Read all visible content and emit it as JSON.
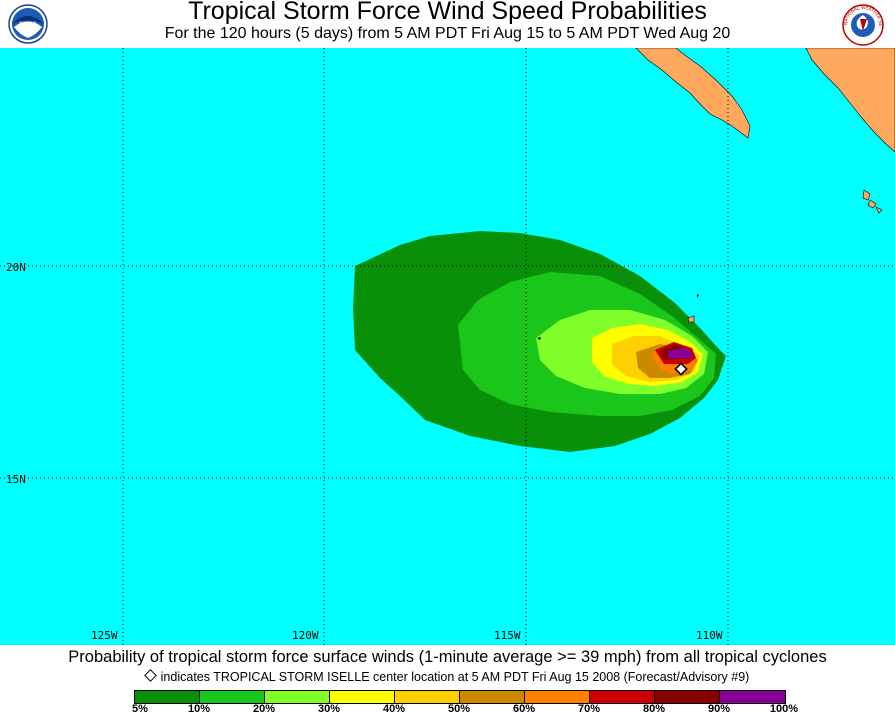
{
  "title": "Tropical Storm Force Wind Speed Probabilities",
  "subtitle": "For the 120 hours (5 days) from 5 AM PDT Fri Aug 15 to 5 AM PDT Wed Aug 20",
  "logos": {
    "left": "NOAA",
    "right": "NATIONAL WEATHER SERVICE"
  },
  "map": {
    "ocean_color": "#00ffff",
    "land_color": "#ffa95e",
    "latitude_labels": [
      "20N",
      "15N"
    ],
    "longitude_labels": [
      "125W",
      "120W",
      "115W",
      "110W"
    ]
  },
  "caption": "Probability of tropical storm force surface winds (1-minute average >= 39 mph) from all tropical cyclones",
  "note": "indicates TROPICAL STORM ISELLE center location at 5 AM PDT Fri Aug 15 2008 (Forecast/Advisory #9)",
  "legend": {
    "colors": [
      "#089008",
      "#1ac61a",
      "#80ff2a",
      "#ffff00",
      "#ffd000",
      "#cc8800",
      "#ff8000",
      "#cc0000",
      "#880000",
      "#880099"
    ],
    "labels": [
      "5%",
      "10%",
      "20%",
      "30%",
      "40%",
      "50%",
      "60%",
      "70%",
      "80%",
      "90%",
      "100%"
    ]
  },
  "storm_center": {
    "lat": 17.6,
    "lon": -110.9
  }
}
